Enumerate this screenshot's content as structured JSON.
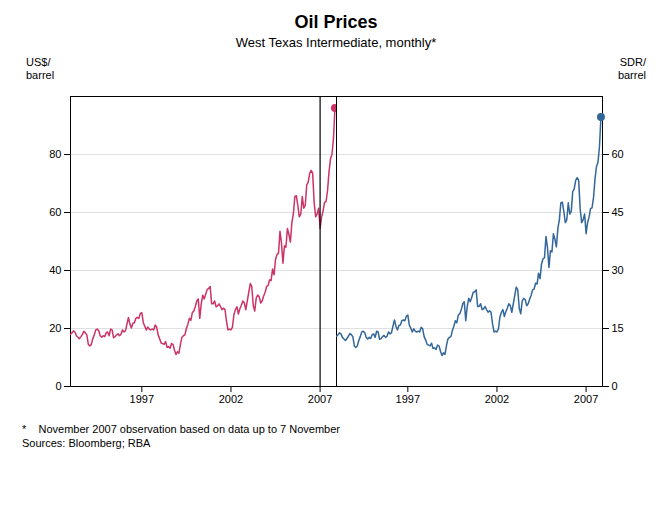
{
  "chart_data": [
    {
      "type": "line",
      "title": "Oil Prices",
      "subtitle": "West Texas Intermediate, monthly*",
      "footnote": "*    November 2007 observation based on data up to 7 November\nSources: Bloomberg; RBA",
      "ylabel": "US$/\nbarrel",
      "color": "#cc3366",
      "xlim": [
        1993.0,
        2007.92
      ],
      "xticks": [
        1997,
        2002,
        2007
      ],
      "ylim": [
        0,
        100
      ],
      "yticks": [
        0,
        20,
        40,
        60,
        80
      ],
      "grid": true,
      "vline": 2007.0,
      "end_point": {
        "x": 2007.833333333333,
        "y": 96.0
      },
      "x": [
        1993,
        1993.083333333333,
        1993.166666666667,
        1993.25,
        1993.333333333333,
        1993.416666666667,
        1993.5,
        1993.583333333333,
        1993.666666666667,
        1993.75,
        1993.833333333333,
        1993.916666666667,
        1994,
        1994.083333333333,
        1994.166666666667,
        1994.25,
        1994.333333333333,
        1994.416666666667,
        1994.5,
        1994.583333333333,
        1994.666666666667,
        1994.75,
        1994.833333333333,
        1994.916666666667,
        1995,
        1995.083333333333,
        1995.166666666667,
        1995.25,
        1995.333333333333,
        1995.416666666667,
        1995.5,
        1995.583333333333,
        1995.666666666667,
        1995.75,
        1995.833333333333,
        1995.916666666667,
        1996,
        1996.083333333333,
        1996.166666666667,
        1996.25,
        1996.333333333333,
        1996.416666666667,
        1996.5,
        1996.583333333333,
        1996.666666666667,
        1996.75,
        1996.833333333333,
        1996.916666666667,
        1997,
        1997.083333333333,
        1997.166666666667,
        1997.25,
        1997.333333333333,
        1997.416666666667,
        1997.5,
        1997.583333333333,
        1997.666666666667,
        1997.75,
        1997.833333333333,
        1997.916666666667,
        1998,
        1998.083333333333,
        1998.166666666667,
        1998.25,
        1998.333333333333,
        1998.416666666667,
        1998.5,
        1998.583333333333,
        1998.666666666667,
        1998.75,
        1998.833333333333,
        1998.916666666667,
        1999,
        1999.083333333333,
        1999.166666666667,
        1999.25,
        1999.333333333333,
        1999.416666666667,
        1999.5,
        1999.583333333333,
        1999.666666666667,
        1999.75,
        1999.833333333333,
        1999.916666666667,
        2000,
        2000.083333333333,
        2000.166666666667,
        2000.25,
        2000.333333333333,
        2000.416666666667,
        2000.5,
        2000.583333333333,
        2000.666666666667,
        2000.75,
        2000.833333333333,
        2000.916666666667,
        2001,
        2001.083333333333,
        2001.166666666667,
        2001.25,
        2001.333333333333,
        2001.416666666667,
        2001.5,
        2001.583333333333,
        2001.666666666667,
        2001.75,
        2001.833333333333,
        2001.916666666667,
        2002,
        2002.083333333333,
        2002.166666666667,
        2002.25,
        2002.333333333333,
        2002.416666666667,
        2002.5,
        2002.583333333333,
        2002.666666666667,
        2002.75,
        2002.833333333333,
        2002.916666666667,
        2003,
        2003.083333333333,
        2003.166666666667,
        2003.25,
        2003.333333333333,
        2003.416666666667,
        2003.5,
        2003.583333333333,
        2003.666666666667,
        2003.75,
        2003.833333333333,
        2003.916666666667,
        2004,
        2004.083333333333,
        2004.166666666667,
        2004.25,
        2004.333333333333,
        2004.416666666667,
        2004.5,
        2004.583333333333,
        2004.666666666667,
        2004.75,
        2004.833333333333,
        2004.916666666667,
        2005,
        2005.083333333333,
        2005.166666666667,
        2005.25,
        2005.333333333333,
        2005.416666666667,
        2005.5,
        2005.583333333333,
        2005.666666666667,
        2005.75,
        2005.833333333333,
        2005.916666666667,
        2006,
        2006.083333333333,
        2006.166666666667,
        2006.25,
        2006.333333333333,
        2006.416666666667,
        2006.5,
        2006.583333333333,
        2006.666666666667,
        2006.75,
        2006.833333333333,
        2006.916666666667,
        2007,
        2007.083333333333,
        2007.166666666667,
        2007.25,
        2007.333333333333,
        2007.416666666667,
        2007.5,
        2007.583333333333,
        2007.666666666667,
        2007.75,
        2007.833333333333
      ],
      "values": [
        18.0,
        18.5,
        19.2,
        18.8,
        17.5,
        17.0,
        16.5,
        17.2,
        18.0,
        19.0,
        18.5,
        17.8,
        14.5,
        14.0,
        14.5,
        16.5,
        17.8,
        19.5,
        19.8,
        19.2,
        17.5,
        17.0,
        17.5,
        17.2,
        18.5,
        18.8,
        17.5,
        19.8,
        19.5,
        16.8,
        17.2,
        17.8,
        18.2,
        17.5,
        18.0,
        19.5,
        18.8,
        19.2,
        21.5,
        23.8,
        21.5,
        20.2,
        21.8,
        22.0,
        23.5,
        23.8,
        23.5,
        25.2,
        25.5,
        22.0,
        20.8,
        19.5,
        20.5,
        19.8,
        19.5,
        19.8,
        19.5,
        21.2,
        20.5,
        17.8,
        16.5,
        15.0,
        14.8,
        14.5,
        15.5,
        13.5,
        13.8,
        13.2,
        14.8,
        14.5,
        12.5,
        11.0,
        12.0,
        11.5,
        14.5,
        17.0,
        17.5,
        17.8,
        20.0,
        21.5,
        23.5,
        22.8,
        25.5,
        26.0,
        27.5,
        29.5,
        30.2,
        23.5,
        28.5,
        31.5,
        30.2,
        31.8,
        33.5,
        33.8,
        34.5,
        28.5,
        28.5,
        29.5,
        27.5,
        27.8,
        28.5,
        27.5,
        26.5,
        27.0,
        26.5,
        22.5,
        19.5,
        19.8,
        19.5,
        20.5,
        24.8,
        26.5,
        27.5,
        25.0,
        26.8,
        28.0,
        29.5,
        28.8,
        26.5,
        29.5,
        32.5,
        35.5,
        34.5,
        28.0,
        26.0,
        30.5,
        31.5,
        31.0,
        28.8,
        29.5,
        31.2,
        32.5,
        34.5,
        34.8,
        36.8,
        36.5,
        40.5,
        38.5,
        43.8,
        45.5,
        46.0,
        53.5,
        49.5,
        42.5,
        48.5,
        48.0,
        54.5,
        52.5,
        49.8,
        56.5,
        59.5,
        65.5,
        65.8,
        62.5,
        58.5,
        59.5,
        65.5,
        61.5,
        62.5,
        69.5,
        70.5,
        73.5,
        74.5,
        73.5,
        63.5,
        58.5,
        59.5,
        61.5,
        54.5,
        58.5,
        60.5,
        63.5,
        63.8,
        67.5,
        74.0,
        78.5,
        80.0,
        85.5,
        96.0
      ]
    },
    {
      "type": "line",
      "ylabel": "SDR/\nbarrel",
      "color": "#336699",
      "xlim": [
        1993.0,
        2007.92
      ],
      "xticks": [
        1997,
        2002,
        2007
      ],
      "ylim": [
        0,
        75
      ],
      "yticks": [
        0,
        15,
        30,
        45,
        60
      ],
      "grid": true,
      "end_point": {
        "x": 2007.833333333333,
        "y": 69.7
      },
      "x": [
        1993,
        1993.083333333333,
        1993.166666666667,
        1993.25,
        1993.333333333333,
        1993.416666666667,
        1993.5,
        1993.583333333333,
        1993.666666666667,
        1993.75,
        1993.833333333333,
        1993.916666666667,
        1994,
        1994.083333333333,
        1994.166666666667,
        1994.25,
        1994.333333333333,
        1994.416666666667,
        1994.5,
        1994.583333333333,
        1994.666666666667,
        1994.75,
        1994.833333333333,
        1994.916666666667,
        1995,
        1995.083333333333,
        1995.166666666667,
        1995.25,
        1995.333333333333,
        1995.416666666667,
        1995.5,
        1995.583333333333,
        1995.666666666667,
        1995.75,
        1995.833333333333,
        1995.916666666667,
        1996,
        1996.083333333333,
        1996.166666666667,
        1996.25,
        1996.333333333333,
        1996.416666666667,
        1996.5,
        1996.583333333333,
        1996.666666666667,
        1996.75,
        1996.833333333333,
        1996.916666666667,
        1997,
        1997.083333333333,
        1997.166666666667,
        1997.25,
        1997.333333333333,
        1997.416666666667,
        1997.5,
        1997.583333333333,
        1997.666666666667,
        1997.75,
        1997.833333333333,
        1997.916666666667,
        1998,
        1998.083333333333,
        1998.166666666667,
        1998.25,
        1998.333333333333,
        1998.416666666667,
        1998.5,
        1998.583333333333,
        1998.666666666667,
        1998.75,
        1998.833333333333,
        1998.916666666667,
        1999,
        1999.083333333333,
        1999.166666666667,
        1999.25,
        1999.333333333333,
        1999.416666666667,
        1999.5,
        1999.583333333333,
        1999.666666666667,
        1999.75,
        1999.833333333333,
        1999.916666666667,
        2000,
        2000.083333333333,
        2000.166666666667,
        2000.25,
        2000.333333333333,
        2000.416666666667,
        2000.5,
        2000.583333333333,
        2000.666666666667,
        2000.75,
        2000.833333333333,
        2000.916666666667,
        2001,
        2001.083333333333,
        2001.166666666667,
        2001.25,
        2001.333333333333,
        2001.416666666667,
        2001.5,
        2001.583333333333,
        2001.666666666667,
        2001.75,
        2001.833333333333,
        2001.916666666667,
        2002,
        2002.083333333333,
        2002.166666666667,
        2002.25,
        2002.333333333333,
        2002.416666666667,
        2002.5,
        2002.583333333333,
        2002.666666666667,
        2002.75,
        2002.833333333333,
        2002.916666666667,
        2003,
        2003.083333333333,
        2003.166666666667,
        2003.25,
        2003.333333333333,
        2003.416666666667,
        2003.5,
        2003.583333333333,
        2003.666666666667,
        2003.75,
        2003.833333333333,
        2003.916666666667,
        2004,
        2004.083333333333,
        2004.166666666667,
        2004.25,
        2004.333333333333,
        2004.416666666667,
        2004.5,
        2004.583333333333,
        2004.666666666667,
        2004.75,
        2004.833333333333,
        2004.916666666667,
        2005,
        2005.083333333333,
        2005.166666666667,
        2005.25,
        2005.333333333333,
        2005.416666666667,
        2005.5,
        2005.583333333333,
        2005.666666666667,
        2005.75,
        2005.833333333333,
        2005.916666666667,
        2006,
        2006.083333333333,
        2006.166666666667,
        2006.25,
        2006.333333333333,
        2006.416666666667,
        2006.5,
        2006.583333333333,
        2006.666666666667,
        2006.75,
        2006.833333333333,
        2006.916666666667,
        2007,
        2007.083333333333,
        2007.166666666667,
        2007.25,
        2007.333333333333,
        2007.416666666667,
        2007.5,
        2007.583333333333,
        2007.666666666667,
        2007.75,
        2007.833333333333
      ],
      "values": [
        13.0,
        13.4,
        13.9,
        13.6,
        12.7,
        12.3,
        11.9,
        12.4,
        13.0,
        13.7,
        13.4,
        12.9,
        10.5,
        10.1,
        10.5,
        11.9,
        12.9,
        14.1,
        14.3,
        13.9,
        12.7,
        12.3,
        12.7,
        12.4,
        13.4,
        13.6,
        12.7,
        14.3,
        14.1,
        12.2,
        12.4,
        12.9,
        13.2,
        12.7,
        13.0,
        14.1,
        13.6,
        13.9,
        15.6,
        17.2,
        15.6,
        14.6,
        15.8,
        15.9,
        17.0,
        17.2,
        17.0,
        18.2,
        18.5,
        15.9,
        15.1,
        14.1,
        14.9,
        14.3,
        14.1,
        14.3,
        14.1,
        15.3,
        14.9,
        12.9,
        12.0,
        10.9,
        10.7,
        10.5,
        11.2,
        9.8,
        10.0,
        9.6,
        10.7,
        10.5,
        9.1,
        8.0,
        8.7,
        8.3,
        10.5,
        12.3,
        12.7,
        12.9,
        14.5,
        15.6,
        17.0,
        16.5,
        18.5,
        18.8,
        19.9,
        21.4,
        21.9,
        17.0,
        20.7,
        22.8,
        21.9,
        23.0,
        24.3,
        24.5,
        25.0,
        20.7,
        20.7,
        21.4,
        19.9,
        20.1,
        20.7,
        19.9,
        19.2,
        19.6,
        19.2,
        16.3,
        14.1,
        14.3,
        14.1,
        14.9,
        18.0,
        19.2,
        19.9,
        18.1,
        19.4,
        20.3,
        21.4,
        20.9,
        19.2,
        21.4,
        23.6,
        25.7,
        25.0,
        20.3,
        18.8,
        22.1,
        22.8,
        22.5,
        20.9,
        21.4,
        22.6,
        23.6,
        25.0,
        25.2,
        26.7,
        26.5,
        29.3,
        27.9,
        31.7,
        33.0,
        33.3,
        38.8,
        35.9,
        30.8,
        35.1,
        34.8,
        39.5,
        38.1,
        36.1,
        40.9,
        43.1,
        47.5,
        47.7,
        45.3,
        42.4,
        43.1,
        47.5,
        44.6,
        45.3,
        50.4,
        51.1,
        53.3,
        54.0,
        53.3,
        46.0,
        42.4,
        43.1,
        44.6,
        39.5,
        42.4,
        43.8,
        46.0,
        46.2,
        48.9,
        53.7,
        56.9,
        58.0,
        62.0,
        69.7
      ]
    }
  ]
}
